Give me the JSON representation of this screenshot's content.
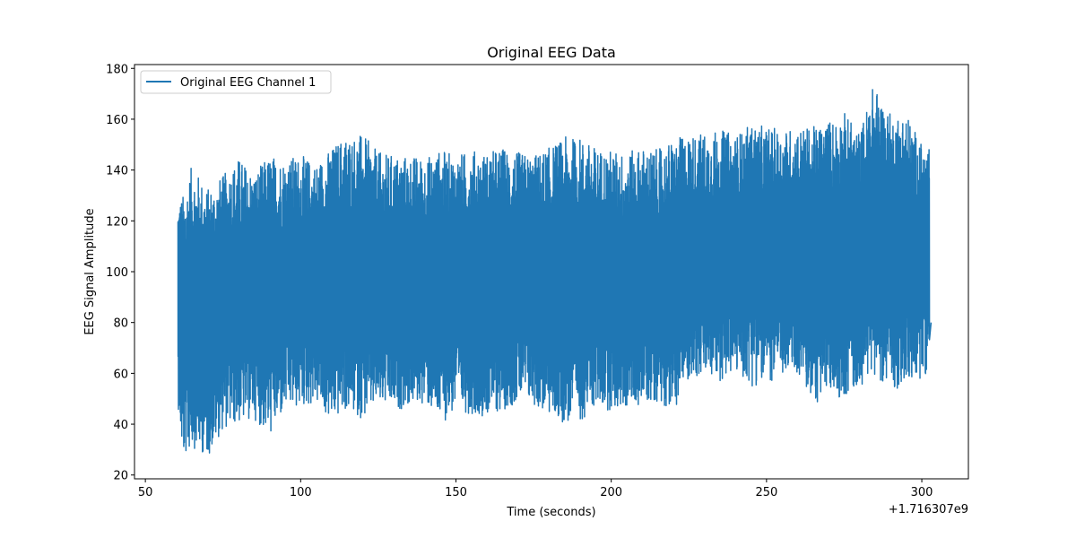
{
  "chart_data": {
    "type": "line",
    "title": "Original EEG Data",
    "xlabel": "Time (seconds)",
    "ylabel": "EEG Signal Amplitude",
    "x_offset_label": "+1.716307e9",
    "xlim": [
      46.5,
      315
    ],
    "ylim": [
      18.5,
      181.5
    ],
    "xticks": [
      50,
      100,
      150,
      200,
      250,
      300
    ],
    "xtick_labels": [
      "50",
      "100",
      "150",
      "200",
      "250",
      "300"
    ],
    "yticks": [
      20,
      40,
      60,
      80,
      100,
      120,
      140,
      160,
      180
    ],
    "ytick_labels": [
      "20",
      "40",
      "60",
      "80",
      "100",
      "120",
      "140",
      "160",
      "180"
    ],
    "grid": false,
    "legend_position": "upper left",
    "series": [
      {
        "name": "Original EEG Channel 1",
        "color": "#1f77b4",
        "note": "Dense high-frequency signal; values below are the approximate upper/lower envelope per time sample",
        "x": [
          60.5,
          62,
          65,
          70,
          75,
          80,
          85,
          90,
          95,
          100,
          105,
          110,
          114,
          120,
          125,
          130,
          135,
          140,
          145,
          150,
          155,
          160,
          165,
          170,
          175,
          180,
          185,
          190,
          195,
          200,
          205,
          210,
          215,
          220,
          225,
          230,
          235,
          240,
          245,
          250,
          255,
          260,
          265,
          270,
          275,
          280,
          284.5,
          290,
          295,
          300,
          302.5,
          303
        ],
        "upper": [
          131,
          130,
          142,
          133,
          138,
          145,
          139,
          146,
          145,
          146,
          143,
          149,
          154,
          154,
          147,
          146,
          146,
          145,
          148,
          146,
          148,
          147,
          149,
          147,
          146,
          149,
          153,
          153,
          149,
          148,
          147,
          149,
          148,
          152,
          154,
          155,
          156,
          154,
          158,
          157,
          156,
          157,
          157,
          160,
          163,
          155,
          174,
          162,
          163,
          150,
          148,
          80
        ],
        "lower": [
          47,
          25,
          31,
          27,
          38,
          40,
          42,
          35,
          45,
          46,
          48,
          40,
          45,
          42,
          47,
          45,
          47,
          48,
          40,
          45,
          44,
          43,
          45,
          49,
          47,
          43,
          40,
          41,
          47,
          45,
          46,
          48,
          49,
          45,
          58,
          58,
          57,
          60,
          55,
          56,
          58,
          60,
          47,
          52,
          50,
          55,
          60,
          53,
          55,
          58,
          62,
          80
        ]
      }
    ]
  }
}
